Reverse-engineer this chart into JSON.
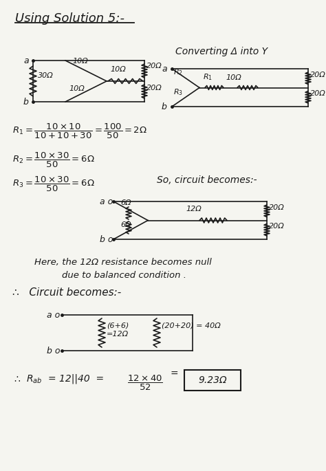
{
  "bg_color": "#f5f5f0",
  "figsize": [
    4.74,
    6.85
  ],
  "dpi": 100,
  "title": "Using Solution 5:-",
  "converting_text": "Converting Δ into Y",
  "R1_formula": "$R_1 = \\dfrac{10\\times10}{10+10+30} = \\dfrac{100}{50} = 2\\Omega$",
  "R2_formula": "$R_2 = \\dfrac{10\\times30}{50} = 6\\Omega$",
  "R3_formula": "$R_3 = \\dfrac{10\\times30}{50} = 6\\Omega$",
  "so_circuit": "So, circuit becomes:-",
  "here_text": "Here, the 12Ω resistance becomes null",
  "due_text": "due to balanced condition .",
  "therefore_text": "∴   Circuit becomes:-",
  "final_formula": "$R_{ab}$ = 12||40  =  $\\dfrac{12\\times40}{52}$",
  "final_answer": "9.23Ω",
  "lw": 1.2,
  "color": "#1a1a1a"
}
